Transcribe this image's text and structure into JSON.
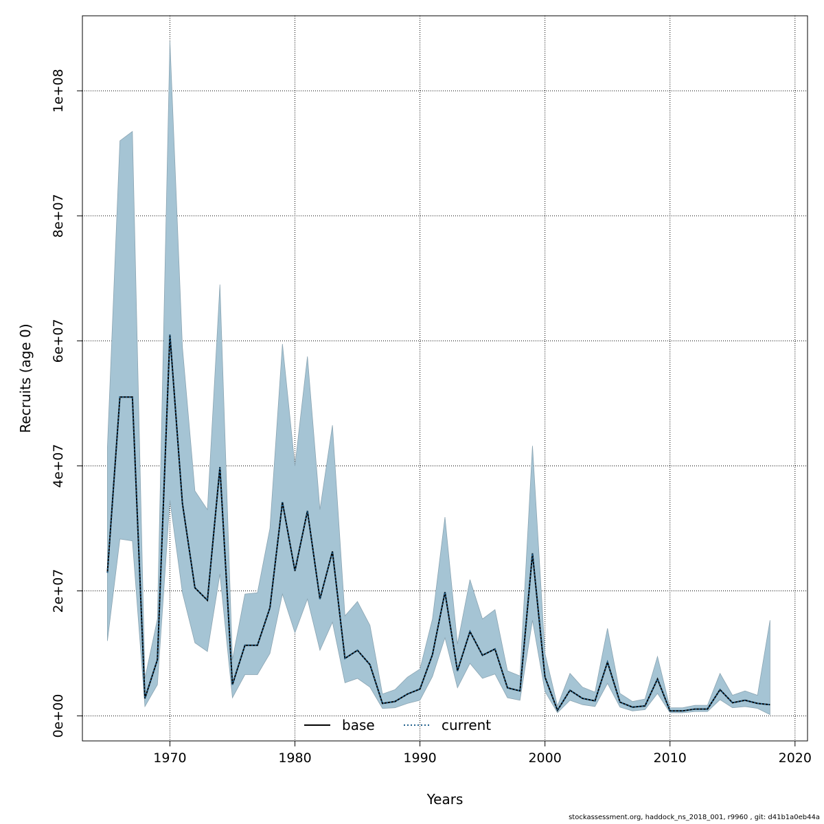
{
  "chart_data": {
    "type": "area",
    "xlabel": "Years",
    "ylabel": "Recruits (age 0)",
    "xlim": [
      1963,
      2021
    ],
    "ylim": [
      -4000000,
      112000000
    ],
    "x_ticks": [
      1970,
      1980,
      1990,
      2000,
      2010,
      2020
    ],
    "y_ticks": [
      0,
      20000000,
      40000000,
      60000000,
      80000000,
      100000000
    ],
    "y_tick_labels": [
      "0e+00",
      "2e+07",
      "4e+07",
      "6e+07",
      "8e+07",
      "1e+08"
    ],
    "grid": true,
    "legend_position": "bottom-center",
    "colors": {
      "band": "#a5c4d4",
      "band_edge": "#8aa4b2",
      "base": "#000000",
      "current": "#1f5f8b"
    },
    "years": [
      1965,
      1966,
      1967,
      1968,
      1969,
      1970,
      1971,
      1972,
      1973,
      1974,
      1975,
      1976,
      1977,
      1978,
      1979,
      1980,
      1981,
      1982,
      1983,
      1984,
      1985,
      1986,
      1987,
      1988,
      1989,
      1990,
      1991,
      1992,
      1993,
      1994,
      1995,
      1996,
      1997,
      1998,
      1999,
      2000,
      2001,
      2002,
      2003,
      2004,
      2005,
      2006,
      2007,
      2008,
      2009,
      2010,
      2011,
      2012,
      2013,
      2014,
      2015,
      2016,
      2017,
      2018
    ],
    "upper": [
      43000000,
      92000000,
      93500000,
      6000000,
      15500000,
      108000000,
      59000000,
      36000000,
      33000000,
      69000000,
      9000000,
      19500000,
      19700000,
      30000000,
      59500000,
      40000000,
      57500000,
      33000000,
      46500000,
      16000000,
      18300000,
      14500000,
      3500000,
      4200000,
      6200000,
      7500000,
      15500000,
      31800000,
      11500000,
      21800000,
      15500000,
      17000000,
      7200000,
      6400000,
      43200000,
      10000000,
      1600000,
      6800000,
      4600000,
      3800000,
      14000000,
      3600000,
      2300000,
      2700000,
      9500000,
      1300000,
      1300000,
      1700000,
      1700000,
      6800000,
      3300000,
      4000000,
      3300000,
      15300000
    ],
    "lower": [
      12000000,
      28300000,
      28000000,
      1500000,
      5000000,
      34500000,
      19700000,
      11700000,
      10300000,
      22700000,
      2900000,
      6600000,
      6600000,
      10000000,
      19500000,
      13300000,
      18700000,
      10500000,
      15000000,
      5300000,
      6000000,
      4600000,
      1200000,
      1300000,
      2000000,
      2500000,
      6300000,
      12500000,
      4500000,
      8400000,
      6000000,
      6700000,
      2900000,
      2500000,
      15300000,
      3900000,
      500000,
      2500000,
      1800000,
      1500000,
      5200000,
      1400000,
      800000,
      1000000,
      3600000,
      500000,
      500000,
      700000,
      700000,
      2600000,
      1300000,
      1500000,
      1200000,
      200000
    ],
    "series": [
      {
        "name": "base",
        "values": [
          22900000,
          51000000,
          51000000,
          2800000,
          9000000,
          61000000,
          34000000,
          20500000,
          18500000,
          39800000,
          5000000,
          11300000,
          11300000,
          17300000,
          34200000,
          23200000,
          32800000,
          18700000,
          26300000,
          9200000,
          10500000,
          8200000,
          2000000,
          2300000,
          3500000,
          4300000,
          9800000,
          19800000,
          7200000,
          13500000,
          9700000,
          10700000,
          4500000,
          4000000,
          26000000,
          6200000,
          900000,
          4100000,
          2800000,
          2400000,
          8600000,
          2200000,
          1400000,
          1600000,
          5900000,
          800000,
          800000,
          1100000,
          1100000,
          4200000,
          2100000,
          2500000,
          2000000,
          1800000
        ]
      },
      {
        "name": "current",
        "values": [
          22900000,
          51000000,
          51000000,
          2800000,
          9000000,
          61000000,
          34000000,
          20500000,
          18500000,
          39800000,
          5000000,
          11300000,
          11300000,
          17300000,
          34200000,
          23200000,
          32800000,
          18700000,
          26300000,
          9200000,
          10500000,
          8200000,
          2000000,
          2300000,
          3500000,
          4300000,
          9800000,
          19800000,
          7200000,
          13500000,
          9700000,
          10700000,
          4500000,
          4000000,
          26000000,
          6200000,
          900000,
          4100000,
          2800000,
          2400000,
          8600000,
          2200000,
          1400000,
          1600000,
          5900000,
          800000,
          800000,
          1100000,
          1100000,
          4200000,
          2100000,
          2500000,
          2000000,
          1800000
        ]
      }
    ]
  },
  "footnote": "stockassessment.org, haddock_ns_2018_001, r9960 , git: d41b1a0eb44a"
}
